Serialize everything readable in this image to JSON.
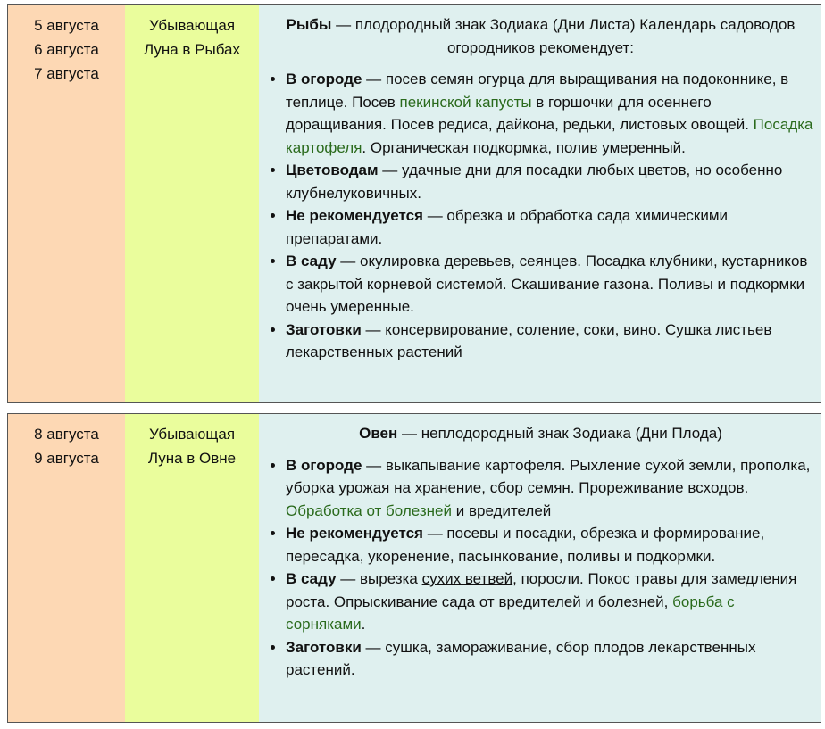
{
  "rows": [
    {
      "dates": [
        "5 августа",
        "6 августа",
        "7 августа"
      ],
      "moon": [
        "Убывающая",
        "Луна в Рыбах"
      ],
      "head": [
        {
          "t": "Рыбы",
          "s": "b"
        },
        {
          "t": " — плодородный знак Зодиака (Дни Листа) Календарь садоводов огородников рекомендует:"
        }
      ],
      "items": [
        [
          {
            "t": "В огороде",
            "s": "b"
          },
          {
            "t": " — посев семян огурца для выращивания на подоконнике, в теплице. Посев "
          },
          {
            "t": "пекинской капусты",
            "s": "g"
          },
          {
            "t": " в горшочки для осеннего доращивания. Посев редиса, дайкона, редьки, листовых овощей. "
          },
          {
            "t": "Посадка картофеля",
            "s": "g"
          },
          {
            "t": ". Органическая подкормка, полив умеренный."
          }
        ],
        [
          {
            "t": "Цветоводам",
            "s": "b"
          },
          {
            "t": " — удачные дни для посадки любых цветов, но особенно клубнелуковичных."
          }
        ],
        [
          {
            "t": "Не рекомендуется",
            "s": "b"
          },
          {
            "t": " — обрезка и обработка сада химическими препаратами."
          }
        ],
        [
          {
            "t": "В саду",
            "s": "b"
          },
          {
            "t": " — окулировка деревьев, сеянцев. Посадка клубники, кустарников с закрытой корневой системой. Скашивание газона. Поливы и подкормки очень умеренные."
          }
        ],
        [
          {
            "t": "Заготовки",
            "s": "b"
          },
          {
            "t": " — консервирование, соление, соки, вино. Сушка листьев лекарственных растений"
          }
        ]
      ]
    },
    {
      "dates": [
        "8 августа",
        "9 августа"
      ],
      "moon": [
        "Убывающая",
        "Луна в Овне"
      ],
      "head": [
        {
          "t": "Овен",
          "s": "b"
        },
        {
          "t": " — неплодородный знак Зодиака (Дни Плода)"
        }
      ],
      "items": [
        [
          {
            "t": "В огороде",
            "s": "b"
          },
          {
            "t": " — выкапывание картофеля.  Рыхление сухой земли, прополка, уборка урожая на хранение, сбор семян. Прореживание всходов. "
          },
          {
            "t": "Обработка от болезней",
            "s": "g"
          },
          {
            "t": " и вредителей"
          }
        ],
        [
          {
            "t": "Не рекомендуется",
            "s": "b"
          },
          {
            "t": " — посевы и посадки, обрезка и формирование,  пересадка, укоренение, пасынкование, поливы и подкормки."
          }
        ],
        [
          {
            "t": "В саду",
            "s": "b"
          },
          {
            "t": " — вырезка "
          },
          {
            "t": "сухих ветвей",
            "s": "u"
          },
          {
            "t": ", поросли. Покос травы для замедления роста. Опрыскивание сада от вредителей и болезней, "
          },
          {
            "t": "борьба с сорняками",
            "s": "g"
          },
          {
            "t": "."
          }
        ],
        [
          {
            "t": "Заготовки",
            "s": "b"
          },
          {
            "t": " — сушка, замораживание, сбор плодов лекарственных растений."
          }
        ]
      ]
    }
  ],
  "colors": {
    "dates_bg": "#fdd8b4",
    "moon_bg": "#eafd9c",
    "content_bg": "#dff0ef",
    "link_green": "#2a6a1c"
  }
}
